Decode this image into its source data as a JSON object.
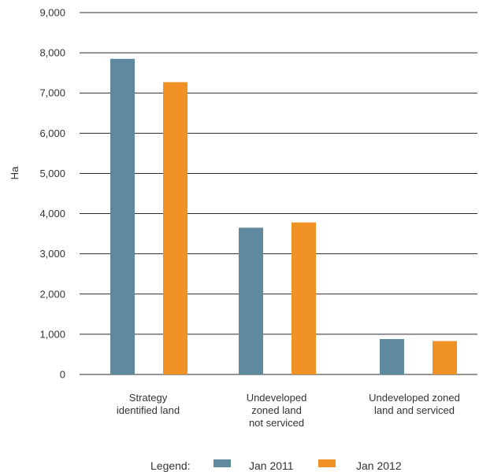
{
  "chart_data": {
    "type": "bar",
    "ylabel": "Ha",
    "ylim": [
      0,
      9000
    ],
    "yticks": [
      0,
      1000,
      2000,
      3000,
      4000,
      5000,
      6000,
      7000,
      8000,
      9000
    ],
    "ytick_labels": [
      "0",
      "1,000",
      "2,000",
      "3,000",
      "4,000",
      "5,000",
      "6,000",
      "7,000",
      "8,000",
      "9,000"
    ],
    "grid": true,
    "legend_position": "bottom",
    "categories": [
      [
        "Strategy",
        "identified land"
      ],
      [
        "Undeveloped",
        "zoned land",
        "not serviced"
      ],
      [
        "Undeveloped zoned",
        "land and serviced"
      ]
    ],
    "series": [
      {
        "name": "Jan 2011",
        "color": "#5f8a9e",
        "values": [
          7850,
          3650,
          880
        ]
      },
      {
        "name": "Jan 2012",
        "color": "#ef9125",
        "values": [
          7270,
          3780,
          830
        ]
      }
    ]
  },
  "legend": {
    "title": "Legend:"
  }
}
